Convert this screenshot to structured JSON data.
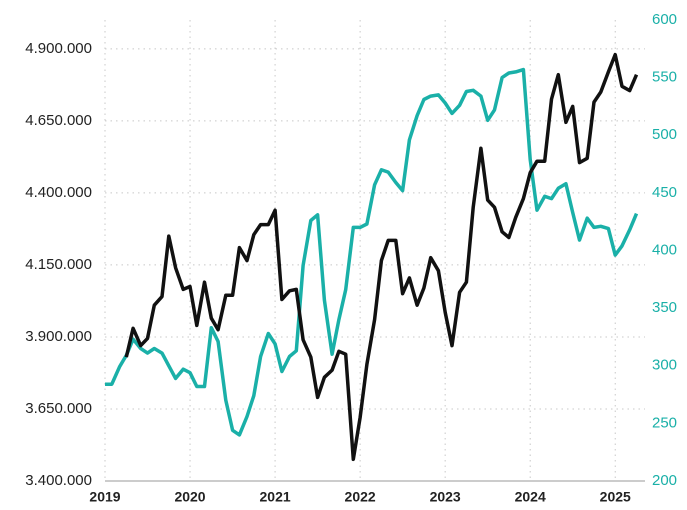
{
  "chart_data": {
    "type": "line",
    "x": [
      2019.0,
      2019.08,
      2019.17,
      2019.25,
      2019.33,
      2019.42,
      2019.5,
      2019.58,
      2019.67,
      2019.75,
      2019.83,
      2019.92,
      2020.0,
      2020.08,
      2020.17,
      2020.25,
      2020.33,
      2020.42,
      2020.5,
      2020.58,
      2020.67,
      2020.75,
      2020.83,
      2020.92,
      2021.0,
      2021.08,
      2021.17,
      2021.25,
      2021.33,
      2021.42,
      2021.5,
      2021.58,
      2021.67,
      2021.75,
      2021.83,
      2021.92,
      2022.0,
      2022.08,
      2022.17,
      2022.25,
      2022.33,
      2022.42,
      2022.5,
      2022.58,
      2022.67,
      2022.75,
      2022.83,
      2022.92,
      2023.0,
      2023.08,
      2023.17,
      2023.25,
      2023.33,
      2023.42,
      2023.5,
      2023.58,
      2023.67,
      2023.75,
      2023.83,
      2023.92,
      2024.0,
      2024.08,
      2024.17,
      2024.25,
      2024.33,
      2024.42,
      2024.5,
      2024.58,
      2024.67,
      2024.75,
      2024.83,
      2024.92,
      2025.0,
      2025.08,
      2025.17,
      2025.25
    ],
    "series": [
      {
        "color": "#111111",
        "axis": "y",
        "values": [
          null,
          null,
          null,
          3830000,
          3930000,
          3870000,
          3895000,
          4010000,
          4040000,
          4250000,
          4140000,
          4065000,
          4075000,
          3940000,
          4090000,
          3965000,
          3925000,
          4045000,
          4045000,
          4210000,
          4165000,
          4255000,
          4290000,
          4290000,
          4340000,
          4030000,
          4060000,
          4065000,
          3890000,
          3830000,
          3690000,
          3760000,
          3785000,
          3850000,
          3840000,
          3475000,
          3620000,
          3805000,
          3960000,
          4165000,
          4235000,
          4235000,
          4050000,
          4105000,
          4010000,
          4070000,
          4175000,
          4130000,
          3985000,
          3870000,
          4055000,
          4090000,
          4350000,
          4555000,
          4375000,
          4350000,
          4265000,
          4245000,
          4315000,
          4380000,
          4470000,
          4510000,
          4510000,
          4725000,
          4810000,
          4645000,
          4700000,
          4505000,
          4520000,
          4715000,
          4750000,
          4820000,
          4880000,
          4770000,
          4755000,
          4810000
        ]
      },
      {
        "color": "#1ab0a8",
        "axis": "y2",
        "values": [
          284,
          284,
          299,
          309,
          323,
          315,
          311,
          315,
          311,
          300,
          289,
          297,
          294,
          282,
          282,
          333,
          321,
          270,
          244,
          240,
          256,
          274,
          308,
          328,
          319,
          295,
          308,
          313,
          387,
          426,
          431,
          357,
          310,
          340,
          366,
          420,
          420,
          423,
          457,
          470,
          468,
          459,
          452,
          496,
          517,
          531,
          534,
          535,
          528,
          519,
          526,
          538,
          539,
          534,
          513,
          522,
          550,
          554,
          555,
          557,
          479,
          435,
          447,
          445,
          454,
          458,
          433,
          409,
          428,
          420,
          421,
          419,
          396,
          404,
          418,
          432
        ]
      }
    ],
    "xlim": [
      2019,
      2025.35
    ],
    "xticks": [
      2019,
      2020,
      2021,
      2022,
      2023,
      2024,
      2025
    ],
    "ylim": [
      3400000,
      5000000
    ],
    "yticks": [
      {
        "value": 3400000,
        "label": "3.400.000"
      },
      {
        "value": 3650000,
        "label": "3.650.000"
      },
      {
        "value": 3900000,
        "label": "3.900.000"
      },
      {
        "value": 4150000,
        "label": "4.150.000"
      },
      {
        "value": 4400000,
        "label": "4.400.000"
      },
      {
        "value": 4650000,
        "label": "4.650.000"
      },
      {
        "value": 4900000,
        "label": "4.900.000"
      }
    ],
    "y2lim": [
      200,
      600
    ],
    "y2ticks": [
      200,
      250,
      300,
      350,
      400,
      450,
      500,
      550,
      600
    ],
    "y2_color": "#1ab0a8",
    "grid": true
  }
}
